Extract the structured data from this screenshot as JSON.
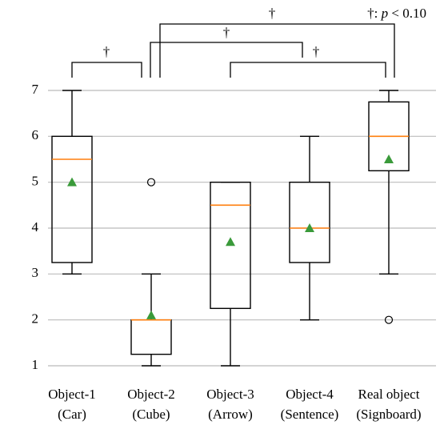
{
  "chart_data": {
    "type": "box",
    "categories": [
      [
        "Object-1",
        "(Car)"
      ],
      [
        "Object-2",
        "(Cube)"
      ],
      [
        "Object-3",
        "(Arrow)"
      ],
      [
        "Object-4",
        "(Sentence)"
      ],
      [
        "Real object",
        "(Signboard)"
      ]
    ],
    "boxes": [
      {
        "whisker_low": 3,
        "q1": 3.25,
        "median": 5.5,
        "q3": 6,
        "whisker_high": 7,
        "mean": 5,
        "outliers": []
      },
      {
        "whisker_low": 1,
        "q1": 1.25,
        "median": 2,
        "q3": 2,
        "whisker_high": 3,
        "mean": 2.1,
        "outliers": [
          5
        ]
      },
      {
        "whisker_low": 1,
        "q1": 2.25,
        "median": 4.5,
        "q3": 5,
        "whisker_high": 5,
        "mean": 3.7,
        "outliers": []
      },
      {
        "whisker_low": 2,
        "q1": 3.25,
        "median": 4,
        "q3": 5,
        "whisker_high": 6,
        "mean": 4,
        "outliers": []
      },
      {
        "whisker_low": 3,
        "q1": 5.25,
        "median": 6,
        "q3": 6.75,
        "whisker_high": 7,
        "mean": 5.5,
        "outliers": [
          2
        ]
      }
    ],
    "box_color": "#000000",
    "median_color": "#ff7f0e",
    "mean_color": "#3a9a3a",
    "ylim": [
      1,
      7
    ],
    "yticks": [
      1,
      2,
      3,
      4,
      5,
      6,
      7
    ],
    "grid": true,
    "annotations": [
      "†",
      "†",
      "†",
      "†"
    ],
    "note": [
      "†:",
      "p",
      "< 0.10"
    ]
  }
}
